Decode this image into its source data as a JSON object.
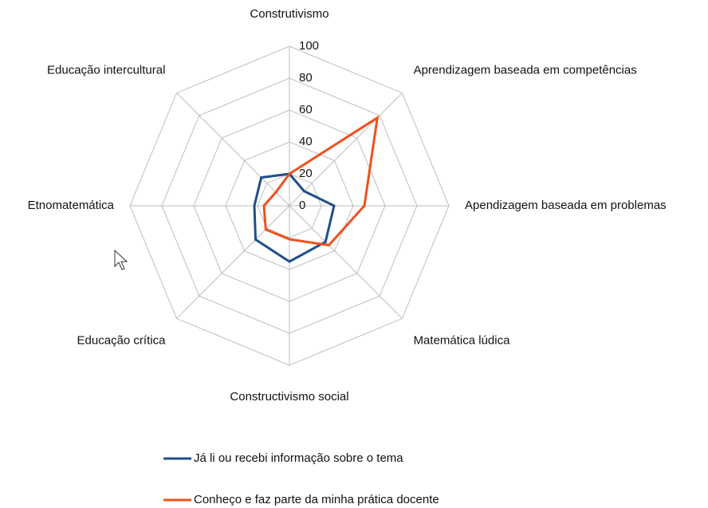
{
  "chart_data": {
    "type": "radar",
    "categories": [
      "Construtivismo",
      "Aprendizagem baseada em competências",
      "Apendizagem baseada em problemas",
      "Matemática lúdica",
      "Constructivismo social",
      "Educação crítica",
      "Etnomatemática",
      "Educação intercultural"
    ],
    "series": [
      {
        "name": "Já li ou recebi informação sobre o tema",
        "color": "#1f4e8c",
        "values": [
          20,
          13,
          28,
          32,
          35,
          30,
          22,
          25
        ]
      },
      {
        "name": "Conheço e faz parte da minha prática docente",
        "color": "#f0501e",
        "values": [
          20,
          78,
          47,
          35,
          21,
          21,
          16,
          12
        ]
      }
    ],
    "ylim": [
      0,
      100
    ],
    "yticks": [
      0,
      20,
      40,
      60,
      80,
      100
    ],
    "grid": true
  }
}
